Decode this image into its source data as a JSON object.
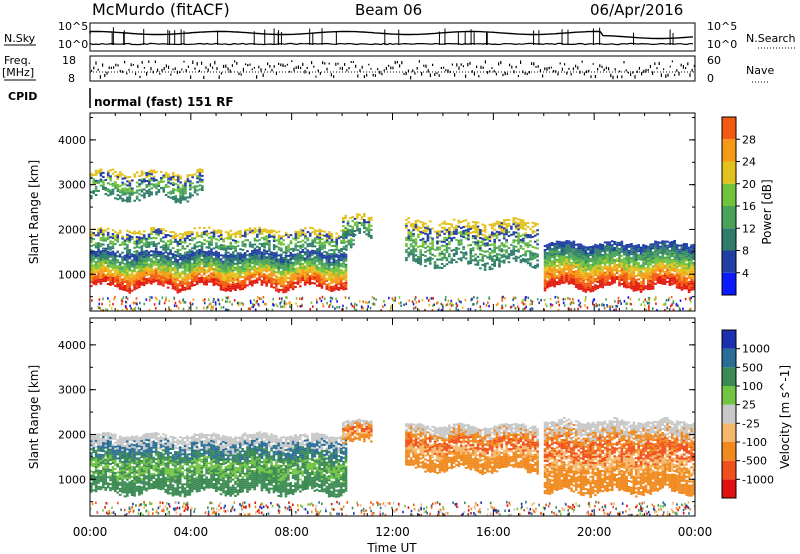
{
  "header": {
    "station": "McMurdo (fitACF)",
    "beam": "Beam 06",
    "date": "06/Apr/2016"
  },
  "left_labels": {
    "nsky": "N.Sky",
    "freq": "Freq.",
    "freq_unit": "[MHz]",
    "cpid": "CPID"
  },
  "right_labels": {
    "nsearch": "N.Search",
    "nave": "Nave"
  },
  "cpid_text": "normal (fast) 151 RF",
  "noise_ticks": {
    "left_top": "10^5",
    "left_bottom": "10^0",
    "right_top": "10^5",
    "right_bottom": "10^0"
  },
  "freq_ticks": {
    "left_top": "18",
    "left_bottom": "8",
    "right_top": "60",
    "right_bottom": "0"
  },
  "colors": {
    "power_scale": [
      "#0a1aff",
      "#1f3fa3",
      "#2e7d6b",
      "#49a35a",
      "#70c33b",
      "#e3c21e",
      "#f59a16",
      "#f25a10",
      "#e21a10"
    ],
    "velocity_scale": [
      "#e01010",
      "#f0501a",
      "#f08a1e",
      "#f5b86a",
      "#c8c8c8",
      "#72c444",
      "#3a8a52",
      "#2a6e96",
      "#1b2fb0"
    ]
  },
  "chart_data": [
    {
      "type": "heatmap",
      "name": "power-panel",
      "title": "",
      "xlabel": "",
      "ylabel": "Slant Range [km]",
      "xlim": [
        0,
        24
      ],
      "ylim": [
        180,
        4600
      ],
      "yticks": [
        1000,
        2000,
        3000,
        4000
      ],
      "colorbar": {
        "label": "Power [dB]",
        "ticks": [
          "4",
          "8",
          "12",
          "16",
          "20",
          "24",
          "28"
        ],
        "range": [
          0,
          32
        ]
      },
      "echo_regions": [
        {
          "t_start": 0.0,
          "t_end": 10.2,
          "r_low": 700,
          "r_high": 1500,
          "value": "24-30"
        },
        {
          "t_start": 0.0,
          "t_end": 10.5,
          "r_low": 1500,
          "r_high": 2000,
          "value": "8-16"
        },
        {
          "t_start": 0.0,
          "t_end": 4.5,
          "r_low": 2700,
          "r_high": 3300,
          "value": "4-14"
        },
        {
          "t_start": 10.0,
          "t_end": 11.2,
          "r_low": 1800,
          "r_high": 2300,
          "value": "8-16"
        },
        {
          "t_start": 12.5,
          "t_end": 17.8,
          "r_low": 1200,
          "r_high": 2200,
          "value": "8-24"
        },
        {
          "t_start": 18.0,
          "t_end": 24.0,
          "r_low": 700,
          "r_high": 1700,
          "value": "20-30"
        }
      ]
    },
    {
      "type": "heatmap",
      "name": "velocity-panel",
      "title": "",
      "xlabel": "Time UT",
      "ylabel": "Slant Range [km]",
      "xlim": [
        0,
        24
      ],
      "ylim": [
        180,
        4600
      ],
      "yticks": [
        1000,
        2000,
        3000,
        4000
      ],
      "xticks": [
        "00:00",
        "04:00",
        "08:00",
        "12:00",
        "16:00",
        "20:00",
        "00:00"
      ],
      "colorbar": {
        "label": "Velocity [m s^-1]",
        "ticks": [
          "-1000",
          "-500",
          "-100",
          "-25",
          "25",
          "100",
          "500",
          "1000"
        ],
        "range": [
          -1200,
          1200
        ]
      },
      "echo_regions": [
        {
          "t_start": 0.0,
          "t_end": 10.2,
          "r_low": 700,
          "r_high": 2000,
          "value": "100-500"
        },
        {
          "t_start": 10.0,
          "t_end": 11.2,
          "r_low": 1800,
          "r_high": 2300,
          "value": "-500 to -100"
        },
        {
          "t_start": 12.5,
          "t_end": 17.8,
          "r_low": 1200,
          "r_high": 2200,
          "value": "-500 to -100"
        },
        {
          "t_start": 18.0,
          "t_end": 24.0,
          "r_low": 700,
          "r_high": 2300,
          "value": "-500 to -100"
        }
      ]
    }
  ]
}
